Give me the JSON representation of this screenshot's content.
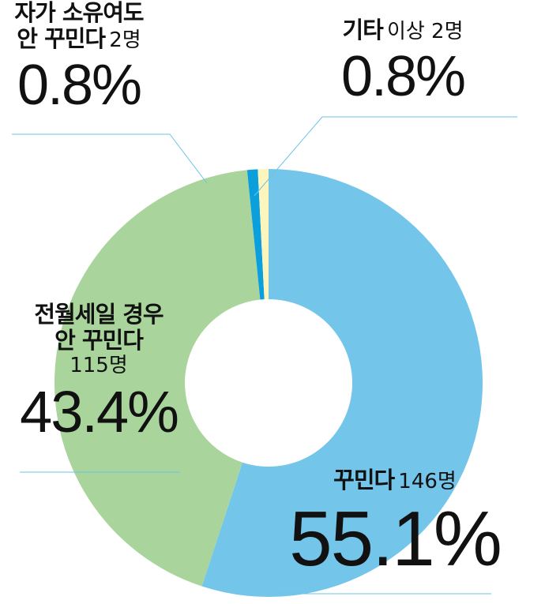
{
  "chart_data": {
    "type": "donut",
    "categories": [
      "꾸민다",
      "전월세일 경우\n안 꾸민다",
      "자가 소유여도\n안 꾸민다",
      "기타"
    ],
    "details": [
      "146명",
      "115명",
      "2명",
      "이상 2명"
    ],
    "values": [
      55.1,
      43.4,
      0.8,
      0.8
    ],
    "value_labels": [
      "55.1%",
      "43.4%",
      "0.8%",
      "0.8%"
    ],
    "colors": [
      "#74c5ea",
      "#a9d59d",
      "#0ba0dc",
      "#fdf5be"
    ]
  }
}
